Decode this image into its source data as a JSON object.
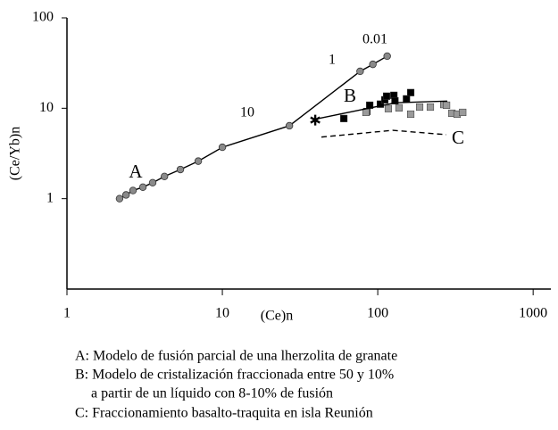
{
  "chart_data": {
    "type": "scatter",
    "log_x": true,
    "log_y": true,
    "x_label": "(Ce)n",
    "y_label": "(Ce/Yb)n",
    "xlim": [
      1,
      1300
    ],
    "xticks": [
      1,
      10,
      100,
      1000
    ],
    "ylim": [
      0.1,
      100
    ],
    "yticks": [
      1,
      10,
      100
    ],
    "annotations": [
      "0.01",
      "1",
      "10",
      "A",
      "B",
      "C"
    ],
    "series": [
      {
        "marker": "circle",
        "line": true,
        "color": "#8a8a8a",
        "x": [
          2.18,
          2.4,
          2.66,
          3.08,
          3.56,
          4.24,
          5.37,
          7,
          10,
          27,
          77,
          93,
          115
        ],
        "values": [
          1,
          1.1,
          1.23,
          1.34,
          1.5,
          1.76,
          2.1,
          2.6,
          3.7,
          6.4,
          25.6,
          30.6,
          37.7
        ]
      },
      {
        "marker": "square",
        "line": false,
        "color": "#000000",
        "x": [
          60.5,
          85,
          88.8,
          104,
          111,
          114,
          127,
          129,
          153,
          163
        ],
        "values": [
          7.7,
          9.2,
          10.8,
          11.1,
          12.4,
          13.6,
          13.9,
          12.1,
          12.7,
          14.9
        ]
      },
      {
        "marker": "square",
        "line": false,
        "color": "#9a9a9a",
        "x": [
          84,
          117,
          137,
          163,
          186,
          218,
          266,
          277,
          300,
          324,
          352
        ],
        "values": [
          9,
          9.9,
          10.1,
          8.6,
          10.3,
          10.3,
          11,
          10.8,
          8.8,
          8.6,
          9
        ]
      },
      {
        "marker": "star",
        "line": false,
        "color": "#000000",
        "x": [
          39.6
        ],
        "values": [
          7.4
        ]
      },
      {
        "marker": "none",
        "line": true,
        "dash": false,
        "color": "#000000",
        "x": [
          40,
          130,
          280
        ],
        "values": [
          7.6,
          11.5,
          12
        ]
      },
      {
        "marker": "none",
        "line": true,
        "dash": true,
        "color": "#000000",
        "x": [
          43.4,
          125,
          276
        ],
        "values": [
          4.8,
          5.7,
          5.1
        ]
      }
    ],
    "legend_text": [
      "A: Modelo de fusión parcial de una lherzolita de granate",
      "B: Modelo de cristalización fraccionada entre 50 y 10%",
      "a partir de un líquido con 8-10% de fusión",
      "C: Fraccionamiento basalto-traquita en  isla Reunión"
    ]
  }
}
